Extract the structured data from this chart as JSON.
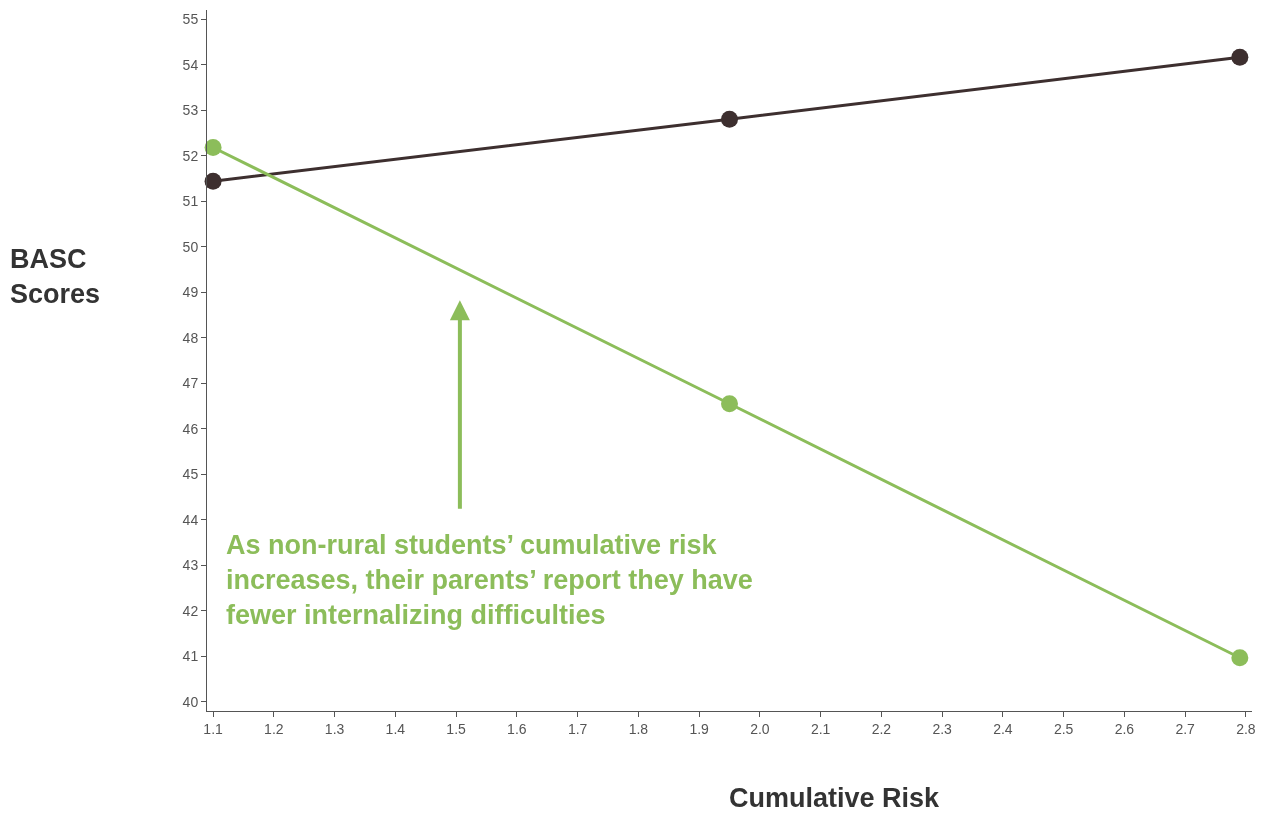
{
  "chart_data": {
    "type": "line",
    "xlabel": "Cumulative Risk",
    "ylabel": "BASC\nScores",
    "series": [
      {
        "color": "#3d2f2f",
        "x": [
          1.1,
          1.95,
          2.79
        ],
        "values": [
          51.44,
          52.8,
          54.16
        ]
      },
      {
        "color": "#8cbd5a",
        "x": [
          1.1,
          1.95,
          2.79
        ],
        "values": [
          52.18,
          46.55,
          40.97
        ]
      }
    ],
    "marker": "circle",
    "line_style": "solid",
    "xlim": [
      1.09,
      2.81
    ],
    "ylim": [
      39.8,
      55.2
    ],
    "xticks": [
      {
        "value": 1.1,
        "label": "1.1"
      },
      {
        "value": 1.2,
        "label": "1.2"
      },
      {
        "value": 1.3,
        "label": "1.3"
      },
      {
        "value": 1.4,
        "label": "1.4"
      },
      {
        "value": 1.5,
        "label": "1.5"
      },
      {
        "value": 1.6,
        "label": "1.6"
      },
      {
        "value": 1.7,
        "label": "1.7"
      },
      {
        "value": 1.8,
        "label": "1.8"
      },
      {
        "value": 1.9,
        "label": "1.9"
      },
      {
        "value": 2.0,
        "label": "2.0"
      },
      {
        "value": 2.1,
        "label": "2.1"
      },
      {
        "value": 2.2,
        "label": "2.2"
      },
      {
        "value": 2.3,
        "label": "2.3"
      },
      {
        "value": 2.4,
        "label": "2.4"
      },
      {
        "value": 2.5,
        "label": "2.5"
      },
      {
        "value": 2.6,
        "label": "2.6"
      },
      {
        "value": 2.7,
        "label": "2.7"
      },
      {
        "value": 2.8,
        "label": "2.8"
      }
    ],
    "yticks": [
      40,
      41,
      42,
      43,
      44,
      45,
      46,
      47,
      48,
      49,
      50,
      51,
      52,
      53,
      54,
      55
    ],
    "annotations": [
      "As non-rural students’ cumulative risk\nincreases, their parents’ report they have\nfewer internalizing difficulties"
    ]
  }
}
